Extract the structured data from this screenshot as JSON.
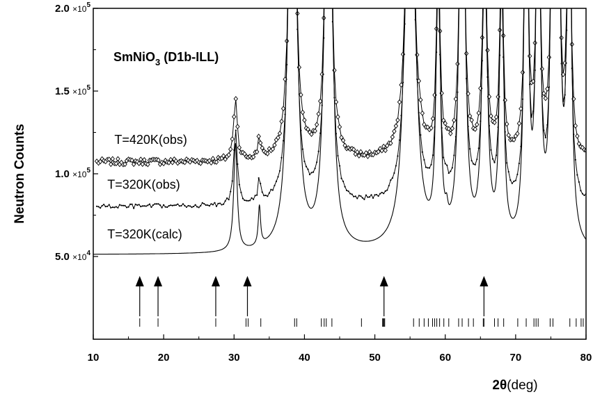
{
  "chart_data": {
    "type": "line",
    "title": "SmNiO3 (D1b-ILL)",
    "title_parts": {
      "main": "SmNiO",
      "sub": "3",
      "rest": " (D1b-ILL)"
    },
    "xlabel": "2θ(deg)",
    "xlabel_parts": {
      "bold": "2θ",
      "normal": "(deg)"
    },
    "ylabel": "Neutron Counts",
    "xlim": [
      10,
      80
    ],
    "ylim": [
      0,
      200000
    ],
    "xticks": [
      10,
      20,
      30,
      40,
      50,
      60,
      70,
      80
    ],
    "yticks": [
      {
        "value": 50000,
        "mant": "5.0",
        "exp": "4"
      },
      {
        "value": 100000,
        "mant": "1.0",
        "exp": "5"
      },
      {
        "value": 150000,
        "mant": "1.5",
        "exp": "5"
      },
      {
        "value": 200000,
        "mant": "2.0",
        "exp": "5"
      }
    ],
    "grid": false,
    "peaks": [
      {
        "pos": 30.2,
        "w": 0.3,
        "h": 65000
      },
      {
        "pos": 33.6,
        "w": 0.2,
        "h": 24000
      },
      {
        "pos": 38.3,
        "w": 0.45,
        "h": 500000
      },
      {
        "pos": 43.4,
        "w": 0.4,
        "h": 500000
      },
      {
        "pos": 55.0,
        "w": 0.6,
        "h": 400000
      },
      {
        "pos": 59.0,
        "w": 0.3,
        "h": 200000
      },
      {
        "pos": 60.2,
        "w": 0.2,
        "h": 8000
      },
      {
        "pos": 62.4,
        "w": 0.35,
        "h": 400000
      },
      {
        "pos": 65.6,
        "w": 0.4,
        "h": 200000
      },
      {
        "pos": 68.0,
        "w": 0.3,
        "h": 200000
      },
      {
        "pos": 71.5,
        "w": 0.3,
        "h": 300000
      },
      {
        "pos": 73.2,
        "w": 0.3,
        "h": 300000
      },
      {
        "pos": 75.3,
        "w": 0.3,
        "h": 300000
      },
      {
        "pos": 76.0,
        "w": 0.3,
        "h": 300000
      },
      {
        "pos": 77.6,
        "w": 0.3,
        "h": 300000
      }
    ],
    "series": [
      {
        "name": "T=420K(obs)",
        "baseline": 107000,
        "peak_scale": 0.6,
        "noise": 1800,
        "marker": "diamond"
      },
      {
        "name": "T=320K(obs)",
        "baseline": 80000,
        "peak_scale": 0.7,
        "noise": 1400,
        "marker": "dot"
      },
      {
        "name": "T=320K(calc)",
        "baseline": 51000,
        "peak_scale": 1.0,
        "noise": 0,
        "marker": "none"
      }
    ],
    "series_labels": [
      {
        "text": "T=420K(obs)",
        "x": 13,
        "y": 118000
      },
      {
        "text": "T=320K(obs)",
        "x": 12,
        "y": 91000
      },
      {
        "text": "T=320K(calc)",
        "x": 12,
        "y": 61000
      }
    ],
    "arrows": [
      16.6,
      19.2,
      27.4,
      31.9,
      51.3,
      65.5
    ],
    "bragg_ticks": [
      16.6,
      19.2,
      27.4,
      31.7,
      32.0,
      33.8,
      38.6,
      38.9,
      42.4,
      42.8,
      43.1,
      43.9,
      48.1,
      51.1,
      51.2,
      51.3,
      51.4,
      55.5,
      56.3,
      57.0,
      57.6,
      58.2,
      58.5,
      58.8,
      59.2,
      59.8,
      60.5,
      61.9,
      62.4,
      63.3,
      64.0,
      65.4,
      65.5,
      67.0,
      67.5,
      68.3,
      70.3,
      71.5,
      72.6,
      72.9,
      73.2,
      74.9,
      75.3,
      77.7,
      78.6,
      79.3,
      79.6
    ]
  }
}
